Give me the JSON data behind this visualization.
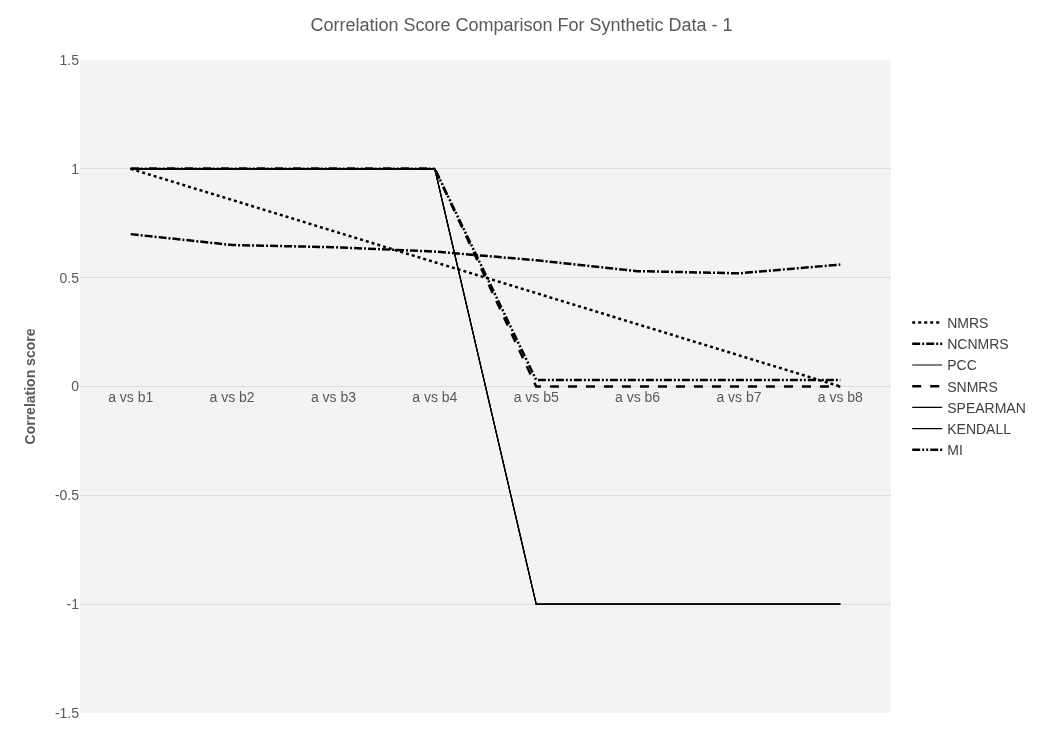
{
  "chart_data": {
    "type": "line",
    "title": "Correlation Score Comparison For Synthetic Data - 1",
    "ylabel": "Correlation score",
    "categories": [
      "a vs b1",
      "a vs b2",
      "a vs b3",
      "a vs b4",
      "a vs b5",
      "a vs b6",
      "a vs b7",
      "a vs b8"
    ],
    "series": [
      {
        "name": "NMRS",
        "color": "#000000",
        "line_style": "dotted",
        "values": [
          1,
          0.857,
          0.714,
          0.571,
          0.429,
          0.286,
          0.143,
          0
        ]
      },
      {
        "name": "NCNMRS",
        "color": "#000000",
        "line_style": "dashdot",
        "values": [
          0.7,
          0.65,
          0.64,
          0.62,
          0.58,
          0.53,
          0.52,
          0.56
        ]
      },
      {
        "name": "PCC",
        "color": "#000000",
        "line_style": "solid",
        "values": [
          1,
          1,
          1,
          1,
          -1,
          -1,
          -1,
          -1
        ]
      },
      {
        "name": "SNMRS",
        "color": "#000000",
        "line_style": "dashed",
        "values": [
          1,
          1,
          1,
          1,
          0,
          0,
          0,
          0
        ]
      },
      {
        "name": "SPEARMAN",
        "color": "#000000",
        "line_style": "solid",
        "values": [
          1,
          1,
          1,
          1,
          -1,
          -1,
          -1,
          -1
        ]
      },
      {
        "name": "KENDALL",
        "color": "#000000",
        "line_style": "solid",
        "values": [
          1,
          1,
          1,
          1,
          -1,
          -1,
          -1,
          -1
        ]
      },
      {
        "name": "MI",
        "color": "#000000",
        "line_style": "dashdotdot",
        "values": [
          1,
          1,
          1,
          1,
          0.03,
          0.03,
          0.03,
          0.03
        ]
      }
    ],
    "ylim": [
      -1.5,
      1.5
    ],
    "yticks": [
      -1.5,
      -1,
      -0.5,
      0,
      0.5,
      1,
      1.5
    ],
    "grid": "y",
    "legend": "right",
    "marker": "none"
  }
}
